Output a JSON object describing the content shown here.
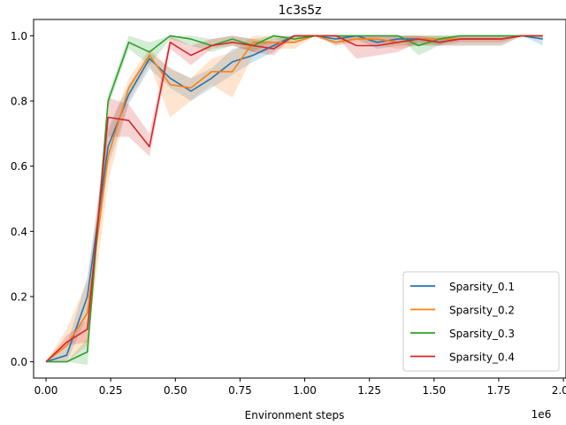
{
  "chart_data": {
    "type": "line",
    "title": "1c3s5z",
    "xlabel": "Environment steps",
    "ylabel": "",
    "x_offset_label": "1e6",
    "xlim": [
      -0.048,
      2.01
    ],
    "ylim": [
      -0.05,
      1.05
    ],
    "x_ticks": [
      0.0,
      0.25,
      0.5,
      0.75,
      1.0,
      1.25,
      1.5,
      1.75,
      2.0
    ],
    "x_tick_labels": [
      "0.00",
      "0.25",
      "0.50",
      "0.75",
      "1.00",
      "1.25",
      "1.50",
      "1.75",
      "2.00"
    ],
    "y_ticks": [
      0.0,
      0.2,
      0.4,
      0.6,
      0.8,
      1.0
    ],
    "y_tick_labels": [
      "0.0",
      "0.2",
      "0.4",
      "0.6",
      "0.8",
      "1.0"
    ],
    "x": [
      0.0,
      0.08,
      0.16,
      0.24,
      0.32,
      0.4,
      0.48,
      0.56,
      0.64,
      0.72,
      0.8,
      0.88,
      0.96,
      1.04,
      1.12,
      1.2,
      1.28,
      1.36,
      1.44,
      1.52,
      1.6,
      1.68,
      1.76,
      1.84,
      1.92
    ],
    "legend_position": "lower right",
    "grid": false,
    "series": [
      {
        "name": "Sparsity_0.1",
        "color": "#1f77b4",
        "values": [
          0.0,
          0.02,
          0.2,
          0.66,
          0.82,
          0.93,
          0.87,
          0.83,
          0.87,
          0.92,
          0.94,
          0.97,
          1.0,
          1.0,
          0.99,
          1.0,
          0.98,
          0.99,
          0.99,
          0.98,
          0.99,
          0.99,
          0.99,
          1.0,
          0.99
        ],
        "lower": [
          0.0,
          0.0,
          0.14,
          0.6,
          0.79,
          0.9,
          0.84,
          0.8,
          0.84,
          0.88,
          0.92,
          0.95,
          1.0,
          1.0,
          0.97,
          0.99,
          0.96,
          0.97,
          0.97,
          0.97,
          0.97,
          0.97,
          0.97,
          1.0,
          0.97
        ],
        "upper": [
          0.0,
          0.05,
          0.26,
          0.72,
          0.85,
          0.95,
          0.9,
          0.87,
          0.9,
          0.96,
          0.97,
          0.99,
          1.0,
          1.0,
          1.0,
          1.0,
          1.0,
          1.0,
          1.0,
          1.0,
          1.0,
          1.0,
          1.0,
          1.0,
          1.0
        ]
      },
      {
        "name": "Sparsity_0.2",
        "color": "#ff7f0e",
        "values": [
          0.0,
          0.05,
          0.15,
          0.63,
          0.84,
          0.94,
          0.85,
          0.84,
          0.89,
          0.89,
          0.98,
          0.98,
          0.98,
          1.0,
          0.98,
          0.99,
          0.99,
          0.98,
          0.99,
          0.99,
          0.99,
          0.99,
          0.99,
          1.0,
          1.0
        ],
        "lower": [
          0.0,
          0.0,
          0.05,
          0.55,
          0.8,
          0.91,
          0.75,
          0.8,
          0.85,
          0.81,
          0.94,
          0.96,
          0.96,
          1.0,
          0.97,
          0.98,
          0.97,
          0.96,
          0.97,
          0.97,
          0.97,
          0.97,
          0.97,
          1.0,
          0.99
        ],
        "upper": [
          0.0,
          0.1,
          0.25,
          0.7,
          0.87,
          0.96,
          0.9,
          0.87,
          0.93,
          0.95,
          1.0,
          1.0,
          1.0,
          1.0,
          1.0,
          1.0,
          1.0,
          1.0,
          1.0,
          1.0,
          1.0,
          1.0,
          1.0,
          1.0,
          1.0
        ]
      },
      {
        "name": "Sparsity_0.3",
        "color": "#2ca02c",
        "values": [
          0.0,
          0.0,
          0.03,
          0.8,
          0.98,
          0.95,
          1.0,
          0.99,
          0.97,
          0.99,
          0.97,
          1.0,
          0.99,
          1.0,
          1.0,
          1.0,
          1.0,
          1.0,
          0.97,
          0.99,
          1.0,
          1.0,
          1.0,
          1.0,
          1.0
        ],
        "lower": [
          0.0,
          0.0,
          -0.01,
          0.78,
          0.96,
          0.91,
          0.99,
          0.97,
          0.95,
          0.97,
          0.95,
          0.99,
          0.98,
          1.0,
          1.0,
          1.0,
          1.0,
          1.0,
          0.94,
          0.97,
          1.0,
          1.0,
          1.0,
          1.0,
          1.0
        ],
        "upper": [
          0.0,
          0.0,
          0.07,
          0.82,
          1.0,
          0.98,
          1.0,
          1.0,
          0.99,
          1.0,
          0.99,
          1.0,
          1.0,
          1.0,
          1.0,
          1.0,
          1.0,
          1.0,
          1.0,
          1.0,
          1.0,
          1.0,
          1.0,
          1.0,
          1.0
        ]
      },
      {
        "name": "Sparsity_0.4",
        "color": "#d62728",
        "values": [
          0.0,
          0.06,
          0.1,
          0.75,
          0.74,
          0.66,
          0.98,
          0.94,
          0.97,
          0.98,
          0.97,
          0.96,
          1.0,
          1.0,
          1.0,
          0.97,
          0.97,
          0.98,
          0.99,
          0.98,
          0.99,
          0.99,
          0.99,
          1.0,
          1.0
        ],
        "lower": [
          0.0,
          0.05,
          0.06,
          0.69,
          0.69,
          0.63,
          0.96,
          0.91,
          0.96,
          0.97,
          0.95,
          0.94,
          1.0,
          1.0,
          1.0,
          0.93,
          0.94,
          0.95,
          0.98,
          0.97,
          0.98,
          0.98,
          0.98,
          1.0,
          1.0
        ],
        "upper": [
          0.0,
          0.08,
          0.13,
          0.81,
          0.79,
          0.7,
          1.0,
          0.97,
          0.99,
          1.0,
          0.99,
          0.98,
          1.0,
          1.0,
          1.0,
          1.0,
          1.0,
          1.0,
          1.0,
          0.99,
          1.0,
          1.0,
          1.0,
          1.0,
          1.0
        ]
      }
    ]
  }
}
